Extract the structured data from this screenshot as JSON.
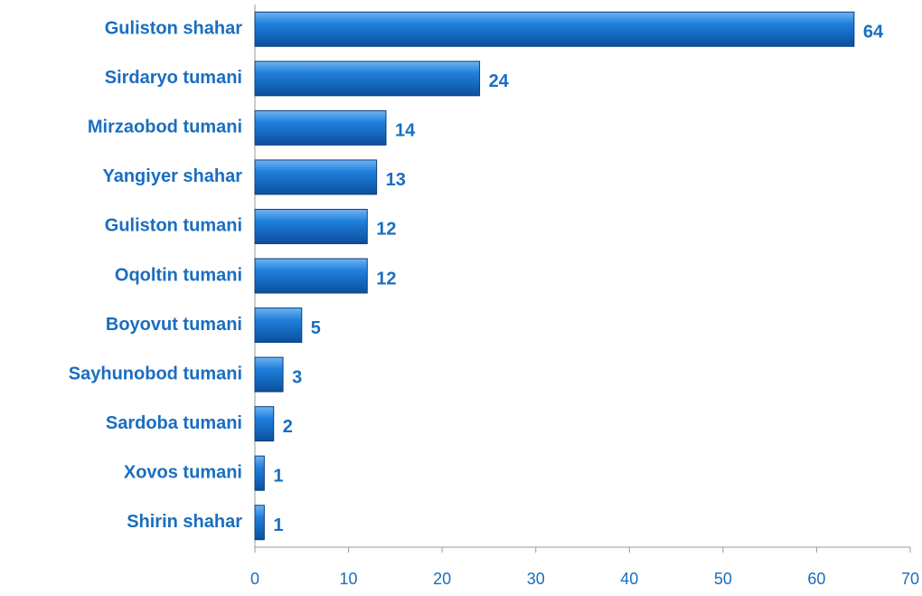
{
  "chart_data": {
    "type": "bar",
    "orientation": "horizontal",
    "categories": [
      "Guliston shahar",
      "Sirdaryo tumani",
      "Mirzaobod tumani",
      "Yangiyer shahar",
      "Guliston tumani",
      "Oqoltin tumani",
      "Boyovut tumani",
      "Sayhunobod tumani",
      "Sardoba tumani",
      "Xovos tumani",
      "Shirin shahar"
    ],
    "values": [
      64,
      24,
      14,
      13,
      12,
      12,
      5,
      3,
      2,
      1,
      1
    ],
    "color": "#1874d2",
    "xlim": [
      0,
      70
    ],
    "xticks": [
      0,
      10,
      20,
      30,
      40,
      50,
      60,
      70
    ]
  }
}
